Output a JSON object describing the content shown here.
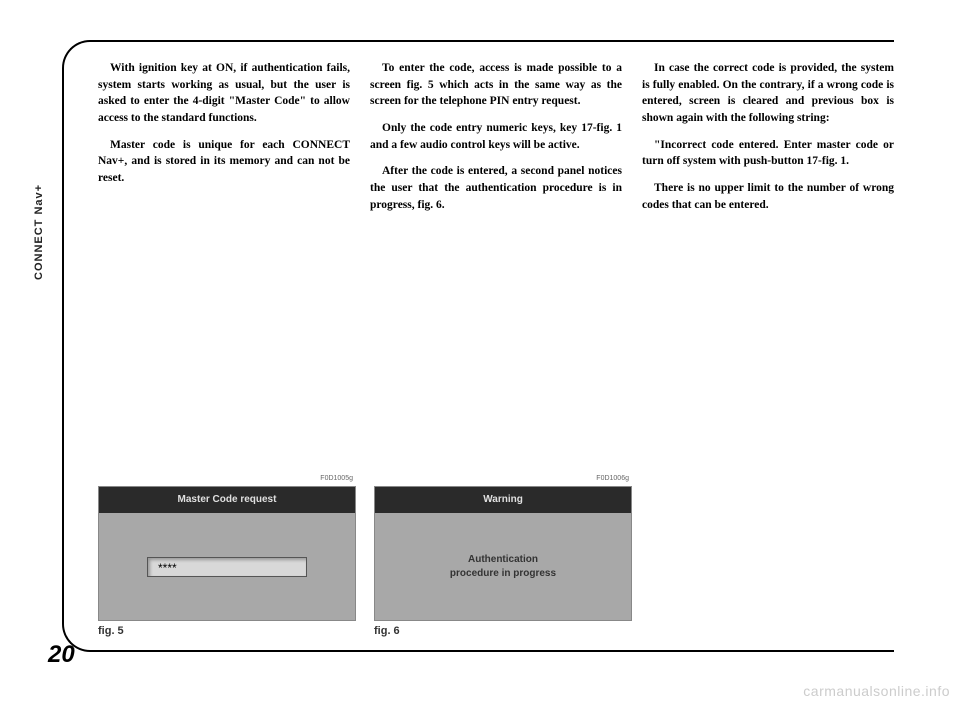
{
  "side_label": "CONNECT Nav+",
  "page_number": "20",
  "columns": {
    "col1": {
      "p1": "With ignition key at ON, if authenti­cation fails, system starts working as usual, but the user is asked to enter the 4-digit \"Master Code\" to allow access to the standard functions.",
      "p2": "Master code is unique for each CON­NECT Nav+, and is stored in its mem­ory and can not be reset."
    },
    "col2": {
      "p1": "To enter the code, access is made pos­sible to a screen fig. 5 which acts in the same way as the screen for the tele­phone PIN entry request.",
      "p2": "Only the code entry numeric keys, key 17-fig. 1 and a few audio control keys will be active.",
      "p3": "After the code is entered, a second panel notices the user that the authen­tication procedure is in progress, fig. 6."
    },
    "col3": {
      "p1": "In case the correct code is provided, the system is fully enabled. On the con­trary, if a wrong code is entered, screen is cleared and previous box is shown again with the following string:",
      "p2": "\"Incorrect code entered. Enter mas­ter code or turn off system with push-button 17-fig. 1.",
      "p3": "There is no upper limit to the num­ber of wrong codes that can be en­tered."
    }
  },
  "figures": {
    "fig5": {
      "header": "Master Code request",
      "input_value": "****",
      "ref": "F0D1005g",
      "caption": "fig. 5"
    },
    "fig6": {
      "header": "Warning",
      "body_line1": "Authentication",
      "body_line2": "procedure in progress",
      "ref": "F0D1006g",
      "caption": "fig. 6"
    }
  },
  "watermark": "carmanualsonline.info",
  "colors": {
    "fig_bg": "#a8a8a8",
    "fig_header_bg": "#2a2a2a",
    "watermark": "#cccccc"
  }
}
